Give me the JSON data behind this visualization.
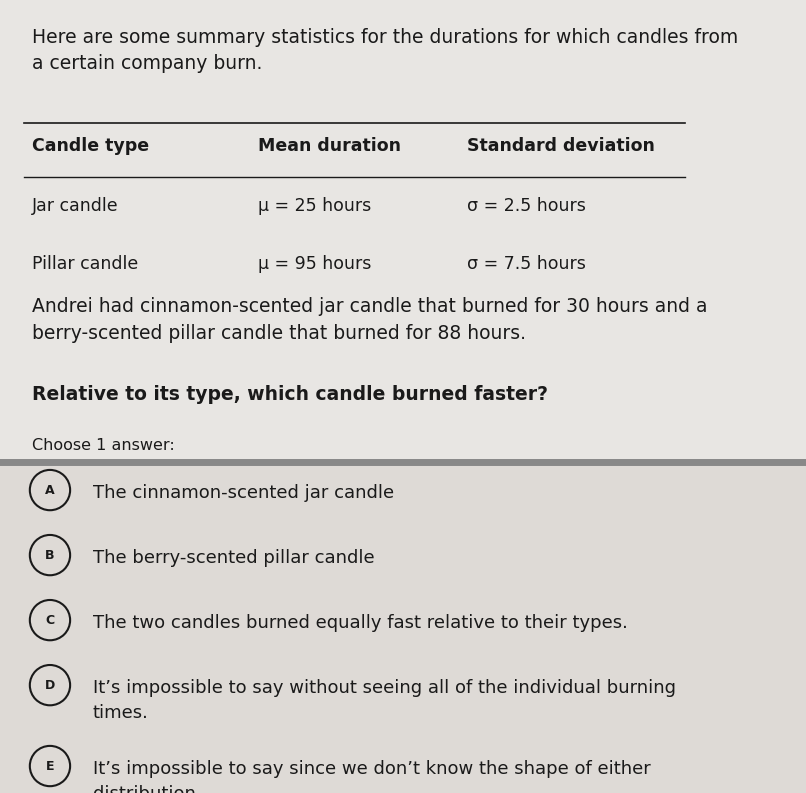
{
  "background_color": "#e8e6e3",
  "text_color": "#1a1a1a",
  "intro_text": "Here are some summary statistics for the durations for which candles from\na certain company burn.",
  "table_header": [
    "Candle type",
    "Mean duration",
    "Standard deviation"
  ],
  "table_rows": [
    [
      "Jar candle",
      "μ = 25 hours",
      "σ = 2.5 hours"
    ],
    [
      "Pillar candle",
      "μ = 95 hours",
      "σ = 7.5 hours"
    ]
  ],
  "problem_text": "Andrei had cinnamon-scented jar candle that burned for 30 hours and a\nberry-scented pillar candle that burned for 88 hours.",
  "question_text": "Relative to its type, which candle burned faster?",
  "choose_text": "Choose 1 answer:",
  "answers": [
    {
      "label": "A",
      "text": "The cinnamon-scented jar candle"
    },
    {
      "label": "B",
      "text": "The berry-scented pillar candle"
    },
    {
      "label": "C",
      "text": "The two candles burned equally fast relative to their types."
    },
    {
      "label": "D",
      "text": "It’s impossible to say without seeing all of the individual burning\ntimes."
    },
    {
      "label": "E",
      "text": "It’s impossible to say since we don’t know the shape of either\ndistribution."
    }
  ],
  "separator_color": "#888888",
  "answer_bg_color": "#dedad6"
}
